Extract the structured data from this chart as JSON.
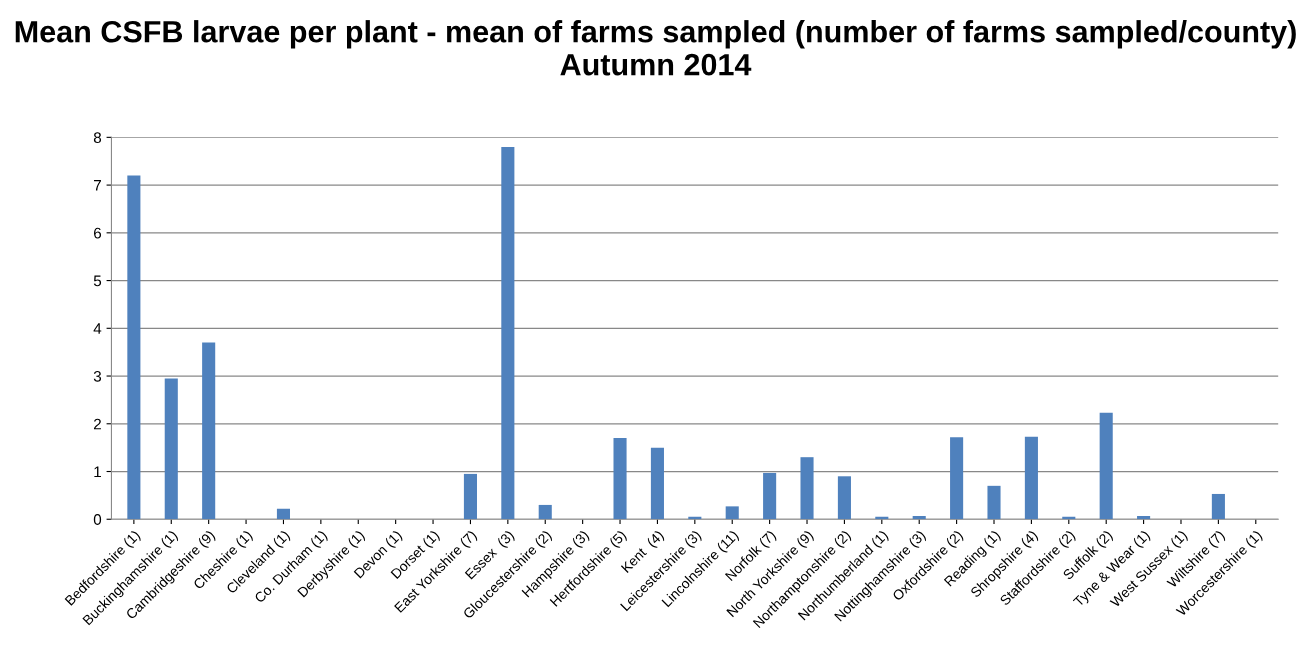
{
  "chart_data": {
    "type": "bar",
    "title": "Mean CSFB larvae per plant - mean of farms sampled (number of farms sampled/county) Autumn 2014",
    "categories": [
      "Bedfordshire (1)",
      "Buckinghamshire (1)",
      "Cambridgeshire (9)",
      "Cheshire (1)",
      "Cleveland (1)",
      "Co. Durham (1)",
      "Derbyshire (1)",
      "Devon (1)",
      "Dorset (1)",
      "East Yorkshire (7)",
      "Essex  (3)",
      "Gloucestershire (2)",
      "Hampshire (3)",
      "Hertfordshire (5)",
      "Kent  (4)",
      "Leicestershire (3)",
      "Lincolnshire (11)",
      "Norfolk (7)",
      "North Yorkshire (9)",
      "Northamptonshire (2)",
      "Northumberland (1)",
      "Nottinghamshire (3)",
      "Oxfordshire (2)",
      "Reading (1)",
      "Shropshire (4)",
      "Staffordshire (2)",
      "Suffolk (2)",
      "Tyne & Wear (1)",
      "West Sussex (1)",
      "Wiltshire (7)",
      "Worcestershire (1)"
    ],
    "values": [
      7.2,
      2.95,
      3.7,
      0,
      0.22,
      0,
      0,
      0,
      0,
      0.95,
      7.8,
      0.3,
      0,
      1.7,
      1.5,
      0.05,
      0.27,
      0.97,
      1.3,
      0.9,
      0.05,
      0.07,
      1.72,
      0.7,
      1.73,
      0.05,
      2.23,
      0.07,
      0,
      0.53,
      0
    ],
    "color": "#4f81bd",
    "ylim": [
      0,
      8
    ],
    "yticks": [
      0,
      1,
      2,
      3,
      4,
      5,
      6,
      7,
      8
    ],
    "grid": "y",
    "legend": false
  }
}
